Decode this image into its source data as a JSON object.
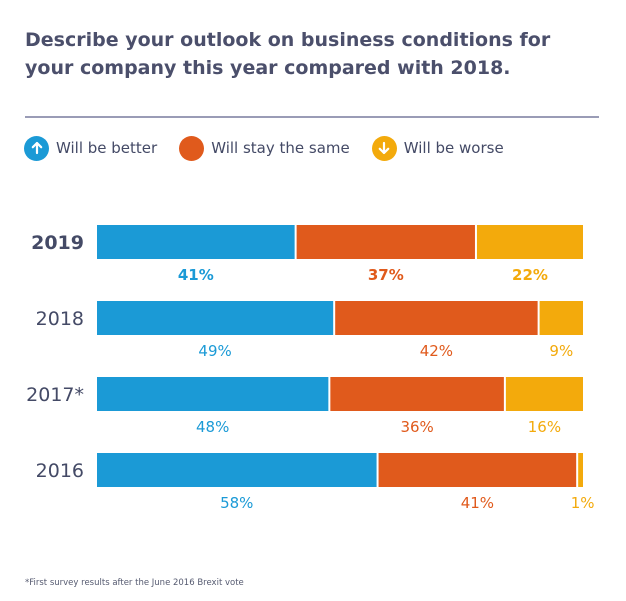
{
  "title": "Describe your outlook on business conditions for your company this year compared with 2018.",
  "colors": {
    "better": "#1b9ad6",
    "same": "#e05a1c",
    "worse": "#f3aa0c",
    "text": "#444a66",
    "rule": "#9a9cb6"
  },
  "legend": [
    {
      "key": "better",
      "label": "Will be better",
      "icon": "arrow-up-icon"
    },
    {
      "key": "same",
      "label": "Will stay the same",
      "icon": "dot-icon"
    },
    {
      "key": "worse",
      "label": "Will be worse",
      "icon": "arrow-down-icon"
    }
  ],
  "chart_data": {
    "type": "bar",
    "orientation": "horizontal",
    "stacked": true,
    "title": "Describe your outlook on business conditions for your company this year compared with 2018.",
    "categories": [
      "2019",
      "2018",
      "2017*",
      "2016"
    ],
    "highlight_category": "2019",
    "series": [
      {
        "name": "Will be better",
        "key": "better",
        "values": [
          41,
          49,
          48,
          58
        ],
        "labels": [
          "41%",
          "49%",
          "48%",
          "58%"
        ]
      },
      {
        "name": "Will stay the same",
        "key": "same",
        "values": [
          37,
          42,
          36,
          41
        ],
        "labels": [
          "37%",
          "42%",
          "36%",
          "41%"
        ]
      },
      {
        "name": "Will be worse",
        "key": "worse",
        "values": [
          22,
          9,
          16,
          1
        ],
        "labels": [
          "22%",
          "9%",
          "16%",
          "1%"
        ]
      }
    ],
    "xlabel": "",
    "ylabel": "",
    "grid": false,
    "legend_position": "top-left"
  },
  "footnote": "*First survey results after the June 2016 Brexit vote"
}
